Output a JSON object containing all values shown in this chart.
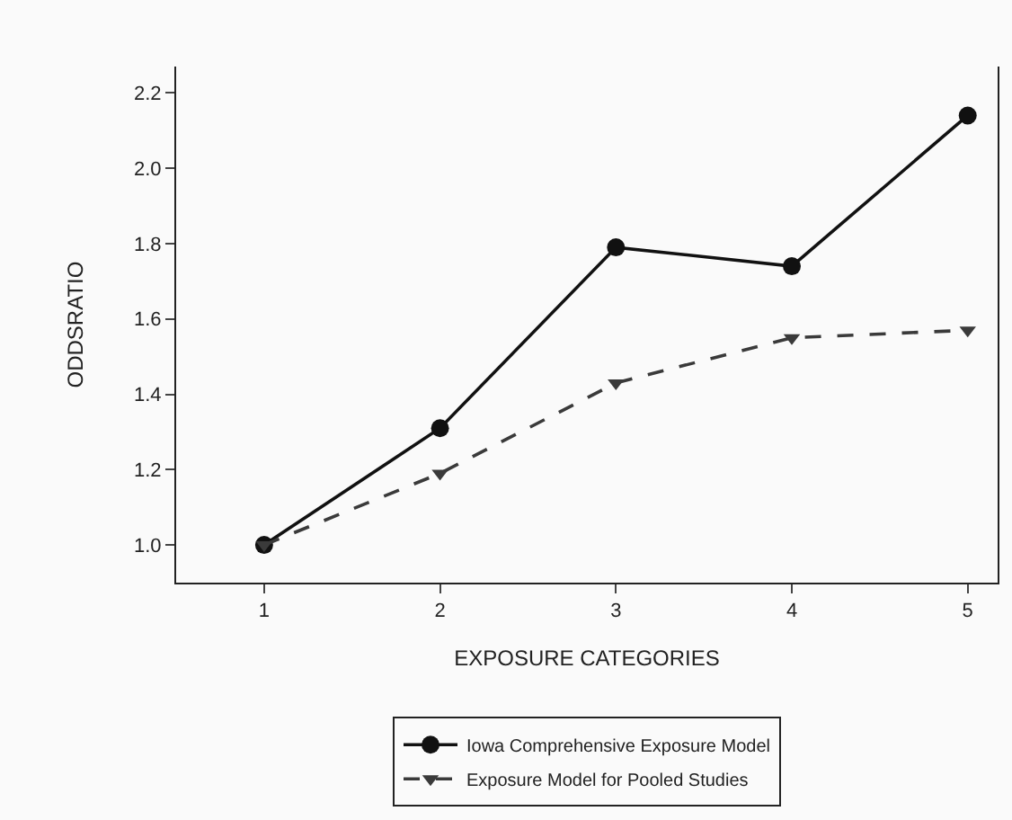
{
  "chart_data": {
    "type": "line",
    "xlabel": "EXPOSURE CATEGORIES",
    "ylabel": "ODDSRATIO",
    "x": [
      1,
      2,
      3,
      4,
      5
    ],
    "series": [
      {
        "name": "Iowa Comprehensive Exposure Model",
        "color": "#111111",
        "values": [
          1.0,
          1.31,
          1.79,
          1.74,
          2.14
        ],
        "marker": "circle",
        "line_style": "solid"
      },
      {
        "name": "Exposure Model for Pooled Studies",
        "color": "#3a3a3a",
        "values": [
          1.0,
          1.19,
          1.43,
          1.55,
          1.57
        ],
        "marker": "triangle",
        "line_style": "dashed"
      }
    ],
    "xlim": [
      0.5,
      5.17
    ],
    "xticks": [
      1,
      2,
      3,
      4,
      5
    ],
    "ylim": [
      0.9,
      2.27
    ],
    "yticks": [
      {
        "value": 1.0,
        "label": "1.0"
      },
      {
        "value": 1.2,
        "label": "1.2"
      },
      {
        "value": 1.4,
        "label": "1.4"
      },
      {
        "value": 1.6,
        "label": "1.6"
      },
      {
        "value": 1.8,
        "label": "1.8"
      },
      {
        "value": 2.0,
        "label": "2.0"
      },
      {
        "value": 2.2,
        "label": "2.2"
      }
    ],
    "grid": false,
    "legend": "bottom"
  }
}
